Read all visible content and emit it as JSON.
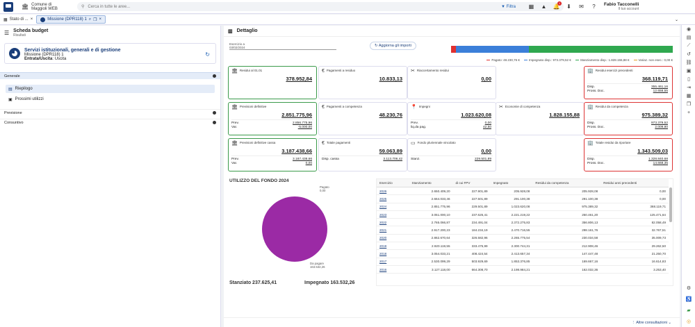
{
  "topbar": {
    "org_line1": "Comune di",
    "org_line2": "Maggioli WEB",
    "search_placeholder": "Cerca in tutte le aree...",
    "filter_label": "Filtra",
    "notification_count": "1",
    "user_name": "Fabio Tacconelli",
    "user_sub": "Il tuo account"
  },
  "tabs": [
    {
      "label": "Stato di ...",
      "active": false
    },
    {
      "label": "Missione (DPR118) 1",
      "active": true
    }
  ],
  "left": {
    "title": "Scheda budget",
    "subtitle": "Risultati",
    "card": {
      "title": "Servizi istituzionali, generali e di gestione",
      "mission": "Missione (DPR118) 1",
      "type_label": "Entrata/Uscita",
      "type_value": "Uscita"
    },
    "sections": [
      "Generale",
      "Previsione",
      "Consuntivo"
    ],
    "menu": [
      "Riepilogo",
      "Prossimi utilizzi"
    ]
  },
  "main": {
    "title": "Dettaglio",
    "esercizio_label": "Esercizio a",
    "esercizio_value": "03/02/2024",
    "aggiorna_label": "Aggiorna gli importi",
    "progress_colors": [
      "#e03030",
      "#3b7fd9",
      "#2fa84f"
    ],
    "progress_values": [
      2.3,
      32.9,
      64.8
    ],
    "legend": [
      {
        "label": "Pagato: 48.230,76 €",
        "color": "#e03030"
      },
      {
        "label": "Impegnato disp.: 973.379,52 €",
        "color": "#3b7fd9"
      },
      {
        "label": "Stanziamento disp.: 1.828.155,88 €",
        "color": "#2fa84f"
      },
      {
        "label": "Variaz. non esec.: 0,00 €",
        "color": "#e0a020"
      }
    ],
    "boxes": {
      "residui_0101": {
        "label": "Residui al 01.01",
        "value": "378.952,84"
      },
      "pagamenti_residuo": {
        "label": "Pagamenti a residuo",
        "value": "10.833,13"
      },
      "riaccertamento": {
        "label": "Riaccertamento residui",
        "value": "0,00"
      },
      "residui_prec": {
        "label": "Residui esercizi precedenti",
        "value": "368.119,71",
        "disp_label": "Disp.",
        "disp_value": "355.461,16",
        "doc_label": "Pross. Doc.",
        "doc_value": "12.658,55"
      },
      "previsioni": {
        "label": "Previsioni definitive",
        "value": "2.851.775,96",
        "prev_label": "Prev.",
        "prev_value": "2.856.775,96",
        "var_label": "Var.",
        "var_value": "-5.000,00"
      },
      "pagamenti_competenza": {
        "label": "Pagamenti a competenza",
        "value": "48.230,76"
      },
      "impegni": {
        "label": "Impegni",
        "value": "1.023.620,08",
        "prev_label": "Prev.",
        "prev_value": "0,00",
        "liq_label": "liq.da pag.",
        "liq_value": "42,50"
      },
      "economie": {
        "label": "Economie di competenza",
        "value": "1.828.155,88"
      },
      "residui_comp": {
        "label": "Residui da competenza",
        "value": "975.389,32",
        "disp_label": "Disp.",
        "disp_value": "973.379,52",
        "doc_label": "Pross. Doc.",
        "doc_value": "2.009,80"
      },
      "prev_cassa": {
        "label": "Previsioni definitive cassa",
        "value": "3.187.438,66",
        "prev_label": "Prev.",
        "prev_value": "3.187.438,66",
        "var_label": "Var.",
        "var_value": "0,00"
      },
      "totale_pagamenti": {
        "label": "Totale pagamenti",
        "value": "59.063,89",
        "disp_label": "Disp. cassa",
        "disp_value": "3.113.706,42"
      },
      "fondo": {
        "label": "Fondo pluriennale vincolato",
        "value": "0,00",
        "stanz_label": "Stanz.",
        "stanz_value": "229.501,89"
      },
      "totale_residui": {
        "label": "Totale residui da riportare",
        "value": "1.343.509,03",
        "disp_label": "Disp.",
        "disp_value": "1.328.840,68",
        "doc_label": "Pross. Doc.",
        "doc_value": "14.668,35"
      }
    },
    "pie": {
      "title": "UTILIZZO DEL FONDO 2024",
      "label_top": "Pagato",
      "label_top_value": "0,00",
      "label_bottom": "Da pagare",
      "label_bottom_value": "163.532,26",
      "stanziato": "Stanziato 237.625,41",
      "impegnato": "Impegnato 163.532,26"
    },
    "table": {
      "headers": [
        "Esercizio",
        "Stanziamento",
        "di cui FPV",
        "Impegnato",
        "Residui da competenza",
        "Residui anni precedenti"
      ],
      "rows": [
        [
          "2026",
          "2.650.409,20",
          "227.901,89",
          "205.928,08",
          "205.928,08",
          "0,00"
        ],
        [
          "2025",
          "2.664.033,46",
          "227.501,89",
          "291.100,38",
          "291.100,38",
          "0,00"
        ],
        [
          "2024",
          "2.851.775,96",
          "229.501,89",
          "1.023.620,08",
          "975.389,32",
          "368.119,71"
        ],
        [
          "2023",
          "3.051.000,10",
          "237.625,41",
          "2.221.219,22",
          "250.461,20",
          "125.471,64"
        ],
        [
          "2022",
          "2.765.066,87",
          "234.491,04",
          "2.372.275,83",
          "356.806,13",
          "82.058,49"
        ],
        [
          "2021",
          "2.917.200,23",
          "184.234,19",
          "2.470.716,55",
          "298.161,76",
          "32.767,51"
        ],
        [
          "2020",
          "2.862.670,64",
          "326.582,96",
          "2.265.775,54",
          "230.034,58",
          "35.009,73"
        ],
        [
          "2019",
          "2.920.119,55",
          "333.475,99",
          "2.300.744,31",
          "212.908,46",
          "29.262,50"
        ],
        [
          "2018",
          "3.054.033,21",
          "408.424,54",
          "2.413.657,34",
          "147.447,48",
          "21.250,70"
        ],
        [
          "2017",
          "2.530.099,29",
          "503.929,69",
          "1.853.376,85",
          "169.667,16",
          "16.614,83"
        ],
        [
          "2016",
          "3.127.118,00",
          "664.308,70",
          "2.198.984,21",
          "162.032,36",
          "3.253,40"
        ]
      ]
    },
    "footer_link": "Altre consultazioni"
  }
}
